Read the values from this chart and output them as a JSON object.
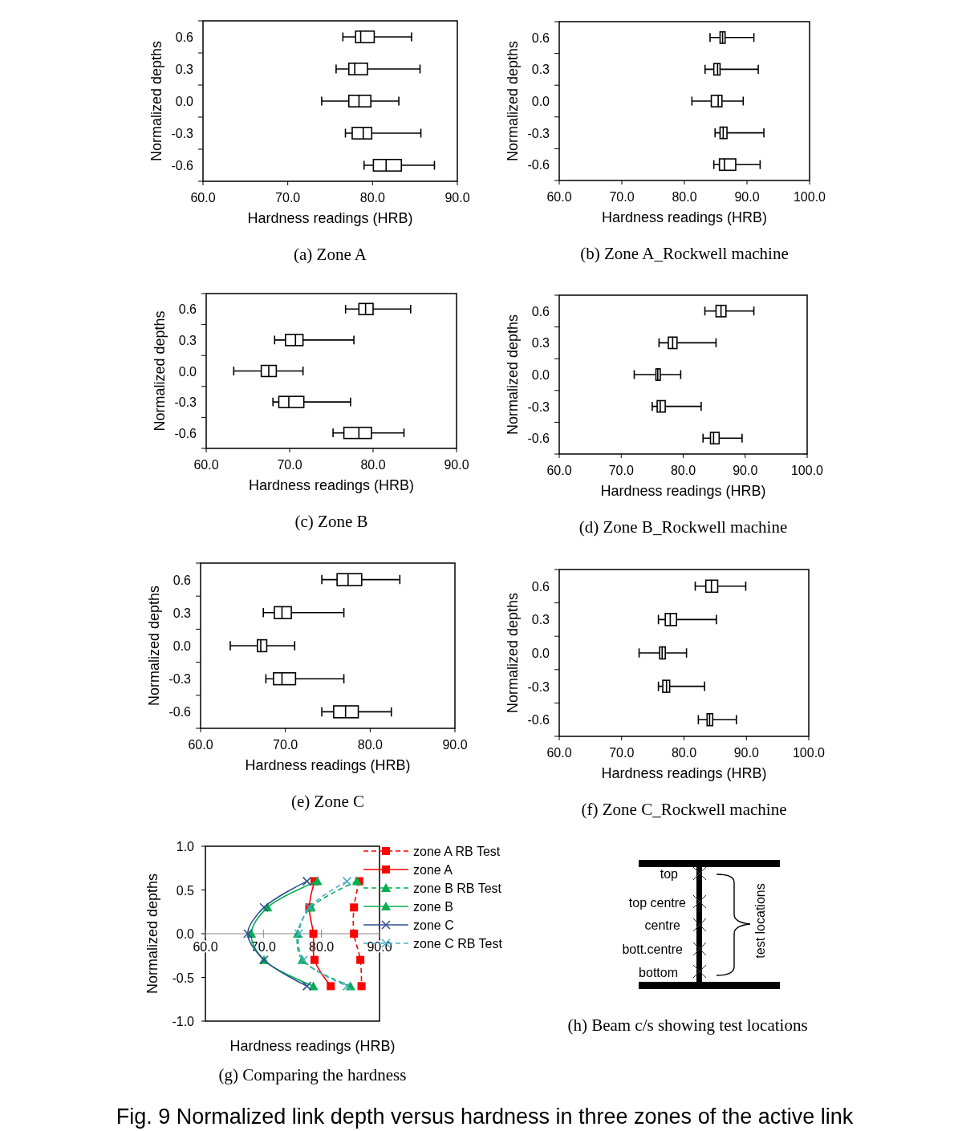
{
  "chart_data": [
    {
      "type": "box",
      "orientation": "horizontal",
      "title": "(a) Zone A",
      "xlabel": "Hardness readings (HRB)",
      "ylabel": "Normalized depths",
      "categories": [
        "0.6",
        "0.3",
        "0.0",
        "-0.3",
        "-0.6"
      ],
      "xlim": [
        60,
        90
      ],
      "xticks": [
        {
          "value": 60,
          "label": "60.0"
        },
        {
          "value": 70,
          "label": "70.0"
        },
        {
          "value": 80,
          "label": "80.0"
        },
        {
          "value": 90,
          "label": "90.0"
        }
      ],
      "boxes": [
        {
          "low": 76.5,
          "q1": 78.0,
          "median": 78.6,
          "q3": 80.2,
          "high": 84.6
        },
        {
          "low": 75.7,
          "q1": 77.2,
          "median": 77.9,
          "q3": 79.4,
          "high": 85.6
        },
        {
          "low": 74.0,
          "q1": 77.2,
          "median": 78.4,
          "q3": 79.8,
          "high": 83.1
        },
        {
          "low": 76.8,
          "q1": 77.6,
          "median": 78.9,
          "q3": 79.9,
          "high": 85.7
        },
        {
          "low": 79.0,
          "q1": 80.1,
          "median": 81.6,
          "q3": 83.4,
          "high": 87.3
        }
      ]
    },
    {
      "type": "box",
      "orientation": "horizontal",
      "title": "(b) Zone A_Rockwell machine",
      "xlabel": "Hardness readings (HRB)",
      "ylabel": "Normalized depths",
      "categories": [
        "0.6",
        "0.3",
        "0.0",
        "-0.3",
        "-0.6"
      ],
      "xlim": [
        60,
        100
      ],
      "xticks": [
        {
          "value": 60,
          "label": "60.0"
        },
        {
          "value": 70,
          "label": "70.0"
        },
        {
          "value": 80,
          "label": "80.0"
        },
        {
          "value": 90,
          "label": "90.0"
        },
        {
          "value": 100,
          "label": "100.0"
        }
      ],
      "boxes": [
        {
          "low": 84.1,
          "q1": 85.7,
          "median": 86.1,
          "q3": 86.5,
          "high": 91.1
        },
        {
          "low": 83.3,
          "q1": 84.7,
          "median": 85.3,
          "q3": 85.7,
          "high": 91.8
        },
        {
          "low": 81.2,
          "q1": 84.3,
          "median": 85.4,
          "q3": 86.0,
          "high": 89.4
        },
        {
          "low": 84.9,
          "q1": 85.7,
          "median": 86.2,
          "q3": 86.8,
          "high": 92.7
        },
        {
          "low": 84.7,
          "q1": 85.6,
          "median": 86.4,
          "q3": 88.2,
          "high": 92.1
        }
      ]
    },
    {
      "type": "box",
      "orientation": "horizontal",
      "title": "(c) Zone B",
      "xlabel": "Hardness readings (HRB)",
      "ylabel": "Normalized depths",
      "categories": [
        "0.6",
        "0.3",
        "0.0",
        "-0.3",
        "-0.6"
      ],
      "xlim": [
        60,
        90
      ],
      "xticks": [
        {
          "value": 60,
          "label": "60.0"
        },
        {
          "value": 70,
          "label": "70.0"
        },
        {
          "value": 80,
          "label": "80.0"
        },
        {
          "value": 90,
          "label": "90.0"
        }
      ],
      "boxes": [
        {
          "low": 76.7,
          "q1": 78.3,
          "median": 79.1,
          "q3": 80.0,
          "high": 84.5
        },
        {
          "low": 68.2,
          "q1": 69.5,
          "median": 70.7,
          "q3": 71.6,
          "high": 77.7
        },
        {
          "low": 63.3,
          "q1": 66.6,
          "median": 67.5,
          "q3": 68.4,
          "high": 71.6
        },
        {
          "low": 68.0,
          "q1": 68.7,
          "median": 69.9,
          "q3": 71.7,
          "high": 77.3
        },
        {
          "low": 75.2,
          "q1": 76.5,
          "median": 78.3,
          "q3": 79.8,
          "high": 83.7
        }
      ]
    },
    {
      "type": "box",
      "orientation": "horizontal",
      "title": "(d) Zone B_Rockwell machine",
      "xlabel": "Hardness readings (HRB)",
      "ylabel": "Normalized depths",
      "categories": [
        "0.6",
        "0.3",
        "0.0",
        "-0.3",
        "-0.6"
      ],
      "xlim": [
        60,
        100
      ],
      "xticks": [
        {
          "value": 60,
          "label": "60.0"
        },
        {
          "value": 70,
          "label": "70.0"
        },
        {
          "value": 80,
          "label": "80.0"
        },
        {
          "value": 90,
          "label": "90.0"
        },
        {
          "value": 100,
          "label": "100.0"
        }
      ],
      "boxes": [
        {
          "low": 83.5,
          "q1": 85.3,
          "median": 86.1,
          "q3": 86.9,
          "high": 91.4
        },
        {
          "low": 76.1,
          "q1": 77.6,
          "median": 78.3,
          "q3": 79.0,
          "high": 85.3
        },
        {
          "low": 72.1,
          "q1": 75.6,
          "median": 75.9,
          "q3": 76.3,
          "high": 79.6
        },
        {
          "low": 75.0,
          "q1": 75.8,
          "median": 76.3,
          "q3": 77.1,
          "high": 82.9
        },
        {
          "low": 83.2,
          "q1": 84.4,
          "median": 84.9,
          "q3": 85.8,
          "high": 89.5
        }
      ]
    },
    {
      "type": "box",
      "orientation": "horizontal",
      "title": "(e) Zone C",
      "xlabel": "Hardness readings (HRB)",
      "ylabel": "Normalized depths",
      "categories": [
        "0.6",
        "0.3",
        "0.0",
        "-0.3",
        "-0.6"
      ],
      "xlim": [
        60,
        90
      ],
      "xticks": [
        {
          "value": 60,
          "label": "60.0"
        },
        {
          "value": 70,
          "label": "70.0"
        },
        {
          "value": 80,
          "label": "80.0"
        },
        {
          "value": 90,
          "label": "90.0"
        }
      ],
      "boxes": [
        {
          "low": 74.3,
          "q1": 76.1,
          "median": 77.4,
          "q3": 79.0,
          "high": 83.5
        },
        {
          "low": 67.4,
          "q1": 68.7,
          "median": 69.6,
          "q3": 70.7,
          "high": 76.9
        },
        {
          "low": 63.5,
          "q1": 66.7,
          "median": 67.1,
          "q3": 67.8,
          "high": 71.1
        },
        {
          "low": 67.7,
          "q1": 68.6,
          "median": 69.6,
          "q3": 71.2,
          "high": 76.9
        },
        {
          "low": 74.3,
          "q1": 75.7,
          "median": 77.1,
          "q3": 78.6,
          "high": 82.5
        }
      ]
    },
    {
      "type": "box",
      "orientation": "horizontal",
      "title": "(f) Zone C_Rockwell machine",
      "xlabel": "Hardness readings (HRB)",
      "ylabel": "Normalized depths",
      "categories": [
        "0.6",
        "0.3",
        "0.0",
        "-0.3",
        "-0.6"
      ],
      "xlim": [
        60,
        100
      ],
      "xticks": [
        {
          "value": 60,
          "label": "60.0"
        },
        {
          "value": 70,
          "label": "70.0"
        },
        {
          "value": 80,
          "label": "80.0"
        },
        {
          "value": 90,
          "label": "90.0"
        },
        {
          "value": 100,
          "label": "100.0"
        }
      ],
      "boxes": [
        {
          "low": 81.8,
          "q1": 83.5,
          "median": 84.4,
          "q3": 85.4,
          "high": 89.9
        },
        {
          "low": 75.9,
          "q1": 77.0,
          "median": 77.8,
          "q3": 78.8,
          "high": 85.2
        },
        {
          "low": 72.8,
          "q1": 76.1,
          "median": 76.5,
          "q3": 77.0,
          "high": 80.4
        },
        {
          "low": 75.9,
          "q1": 76.6,
          "median": 77.2,
          "q3": 77.7,
          "high": 83.3
        },
        {
          "low": 82.3,
          "q1": 83.7,
          "median": 84.1,
          "q3": 84.6,
          "high": 88.4
        }
      ]
    },
    {
      "type": "line",
      "title": "(g) Comparing the hardness",
      "xlabel": "Hardness readings (HRB)",
      "ylabel": "Normalized depths",
      "xlim": [
        60,
        90
      ],
      "xticks": [
        {
          "value": 60,
          "label": "60.0"
        },
        {
          "value": 70,
          "label": "70.0"
        },
        {
          "value": 80,
          "label": "80.0"
        },
        {
          "value": 90,
          "label": "90.0"
        }
      ],
      "ylim": [
        -1,
        1
      ],
      "yticks": [
        {
          "value": -1,
          "label": "-1.0"
        },
        {
          "value": -0.5,
          "label": "-0.5"
        },
        {
          "value": 0,
          "label": "0.0"
        },
        {
          "value": 0.5,
          "label": "0.5"
        },
        {
          "value": 1,
          "label": "1.0"
        }
      ],
      "legend": "right",
      "series": [
        {
          "name": "zone A RB Test",
          "color": "#ff0000",
          "marker": "square",
          "line_style": "dashed",
          "x": [
            86.5,
            85.6,
            85.6,
            86.7,
            86.9
          ],
          "values": [
            0.6,
            0.3,
            0,
            -0.3,
            -0.6
          ]
        },
        {
          "name": "zone A",
          "color": "#ff0000",
          "marker": "square",
          "line_style": "solid",
          "x": [
            78.8,
            77.9,
            78.6,
            78.8,
            81.6
          ],
          "values": [
            0.6,
            0.3,
            0,
            -0.3,
            -0.6
          ]
        },
        {
          "name": "zone B RB Test",
          "color": "#00b050",
          "marker": "triangle",
          "line_style": "dashed",
          "x": [
            86.1,
            78.2,
            75.9,
            76.7,
            85.0
          ],
          "values": [
            0.6,
            0.3,
            0,
            -0.3,
            -0.6
          ]
        },
        {
          "name": "zone B",
          "color": "#00b050",
          "marker": "triangle",
          "line_style": "solid",
          "x": [
            79.3,
            70.7,
            67.9,
            70.1,
            78.6
          ],
          "values": [
            0.6,
            0.3,
            0,
            -0.3,
            -0.6
          ]
        },
        {
          "name": "zone C",
          "color": "#2f4f8f",
          "marker": "cross",
          "line_style": "solid",
          "x": [
            77.5,
            70.1,
            67.3,
            70.1,
            77.5
          ],
          "values": [
            0.6,
            0.3,
            0,
            -0.3,
            -0.6
          ]
        },
        {
          "name": "zone C RB Test",
          "color": "#4bacc6",
          "marker": "cross",
          "line_style": "dashed",
          "x": [
            84.4,
            77.9,
            76.1,
            76.9,
            84.4
          ],
          "values": [
            0.6,
            0.3,
            0,
            -0.3,
            -0.6
          ]
        }
      ]
    },
    {
      "type": "other",
      "title": "(h) Beam c/s showing test locations",
      "annotations": [
        "top",
        "top centre",
        "centre",
        "bott.centre",
        "bottom",
        "test locations",
        "Fig. 9    Normalized link depth versus hardness in three zones of the active link"
      ]
    }
  ]
}
